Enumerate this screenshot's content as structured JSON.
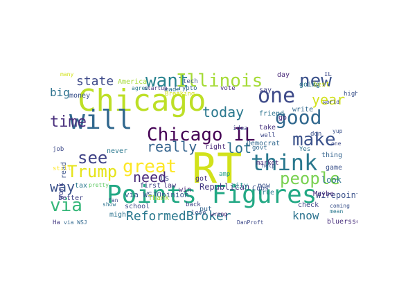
{
  "words": [
    {
      "text": "RT",
      "color": "#d2e21b"
    },
    {
      "text": "Points Figures",
      "color": "#22a884"
    },
    {
      "text": "Chicago",
      "color": "#bddf26"
    },
    {
      "text": "will",
      "color": "#31688e"
    },
    {
      "text": "Chicago IL",
      "color": "#440154"
    },
    {
      "text": "one",
      "color": "#3e4a89"
    },
    {
      "text": "think",
      "color": "#2a788e"
    },
    {
      "text": "good",
      "color": "#31688e"
    },
    {
      "text": "people",
      "color": "#7ad151"
    },
    {
      "text": "want",
      "color": "#26828e"
    },
    {
      "text": "Illinois",
      "color": "#a5db36"
    },
    {
      "text": "new",
      "color": "#3b528b"
    },
    {
      "text": "great",
      "color": "#fde725"
    },
    {
      "text": "Trump",
      "color": "#e5e419"
    },
    {
      "text": "make",
      "color": "#3b528b"
    },
    {
      "text": "time",
      "color": "#472d7b"
    },
    {
      "text": "see",
      "color": "#414487"
    },
    {
      "text": "via",
      "color": "#35b779"
    },
    {
      "text": "year",
      "color": "#d2e21b"
    },
    {
      "text": "lot",
      "color": "#2c728e"
    },
    {
      "text": "really",
      "color": "#33638d"
    },
    {
      "text": "today",
      "color": "#2a788e"
    },
    {
      "text": "need",
      "color": "#482878"
    },
    {
      "text": "way",
      "color": "#3b528b"
    },
    {
      "text": "ReformedBroker",
      "color": "#2a788e"
    },
    {
      "text": "state",
      "color": "#3e4a89"
    },
    {
      "text": "big",
      "color": "#2c728e"
    },
    {
      "text": "know",
      "color": "#2c728e"
    },
    {
      "text": "Republican",
      "color": "#443983"
    },
    {
      "text": "Wirepoints",
      "color": "#3b528b"
    },
    {
      "text": "via WSJOpinion",
      "color": "#38598c"
    },
    {
      "text": "bluerssen",
      "color": "#472d7b"
    },
    {
      "text": "DanProft",
      "color": "#3e4a89"
    },
    {
      "text": "Democrat",
      "color": "#31688e"
    },
    {
      "text": "America",
      "color": "#a5db36"
    },
    {
      "text": "never",
      "color": "#2a788e"
    },
    {
      "text": "first",
      "color": "#414487"
    },
    {
      "text": "law",
      "color": "#46327e"
    },
    {
      "text": "tech",
      "color": "#3b528b"
    },
    {
      "text": "market",
      "color": "#482878"
    },
    {
      "text": "vote",
      "color": "#472d7b"
    },
    {
      "text": "say",
      "color": "#414487"
    },
    {
      "text": "best",
      "color": "#d2e21b"
    },
    {
      "text": "day",
      "color": "#482878"
    },
    {
      "text": "going",
      "color": "#2a788e"
    },
    {
      "text": "world",
      "color": "#3e4a89"
    },
    {
      "text": "write",
      "color": "#31688e"
    },
    {
      "text": "take",
      "color": "#46327e"
    },
    {
      "text": "Yes",
      "color": "#2c728e"
    },
    {
      "text": "right",
      "color": "#482878"
    },
    {
      "text": "govt",
      "color": "#31688e"
    },
    {
      "text": "now",
      "color": "#3b528b"
    },
    {
      "text": "true",
      "color": "#2a788e"
    },
    {
      "text": "check",
      "color": "#414487"
    },
    {
      "text": "Maybe",
      "color": "#472d7b"
    },
    {
      "text": "look",
      "color": "#2c728e"
    },
    {
      "text": "thing",
      "color": "#33638d"
    },
    {
      "text": "game",
      "color": "#3b528b"
    },
    {
      "text": "city",
      "color": "#21918c"
    },
    {
      "text": "amp",
      "color": "#1f9e89"
    },
    {
      "text": "school",
      "color": "#3e4a89"
    },
    {
      "text": "Thank",
      "color": "#a5db36"
    },
    {
      "text": "win",
      "color": "#482878"
    },
    {
      "text": "got",
      "color": "#46327e"
    },
    {
      "text": "put",
      "color": "#33638d"
    },
    {
      "text": "might",
      "color": "#2c728e"
    },
    {
      "text": "better",
      "color": "#414487"
    },
    {
      "text": "money",
      "color": "#3b528b"
    },
    {
      "text": "tax",
      "color": "#2a788e"
    },
    {
      "text": "US",
      "color": "#3e4a89"
    },
    {
      "text": "pretty",
      "color": "#5ec962"
    },
    {
      "text": "Cubs",
      "color": "#3b528b"
    },
    {
      "text": "friend",
      "color": "#2c728e"
    },
    {
      "text": "idea",
      "color": "#3e4a89"
    },
    {
      "text": "well",
      "color": "#3e4a89"
    },
    {
      "text": "go",
      "color": "#482878"
    },
    {
      "text": "love",
      "color": "#3b528b"
    },
    {
      "text": "back",
      "color": "#414487"
    },
    {
      "text": "work",
      "color": "#414487"
    },
    {
      "text": "read",
      "color": "#3b528b"
    },
    {
      "text": "don",
      "color": "#3b528b"
    },
    {
      "text": "made",
      "color": "#2c728e"
    },
    {
      "text": "Crypto",
      "color": "#31688e"
    },
    {
      "text": "startup",
      "color": "#46327e"
    },
    {
      "text": "Breaking",
      "color": "#d2e21b"
    },
    {
      "text": "agree",
      "color": "#2a788e"
    },
    {
      "text": "many",
      "color": "#d2e21b"
    },
    {
      "text": "IL",
      "color": "#3e4a89"
    },
    {
      "text": "high",
      "color": "#3b528b"
    },
    {
      "text": "still",
      "color": "#fde725"
    },
    {
      "text": "job",
      "color": "#3e4a89"
    },
    {
      "text": "yup",
      "color": "#3b528b"
    },
    {
      "text": "Ha",
      "color": "#443983"
    },
    {
      "text": "via WSJ",
      "color": "#31688e"
    },
    {
      "text": "fan",
      "color": "#3e4a89"
    },
    {
      "text": "show",
      "color": "#2c728e"
    },
    {
      "text": "wrong",
      "color": "#482878"
    },
    {
      "text": "help",
      "color": "#3b528b"
    },
    {
      "text": "one",
      "color": "#3e4a89"
    },
    {
      "text": "coming",
      "color": "#3b528b"
    },
    {
      "text": "mean",
      "color": "#2a788e"
    }
  ]
}
